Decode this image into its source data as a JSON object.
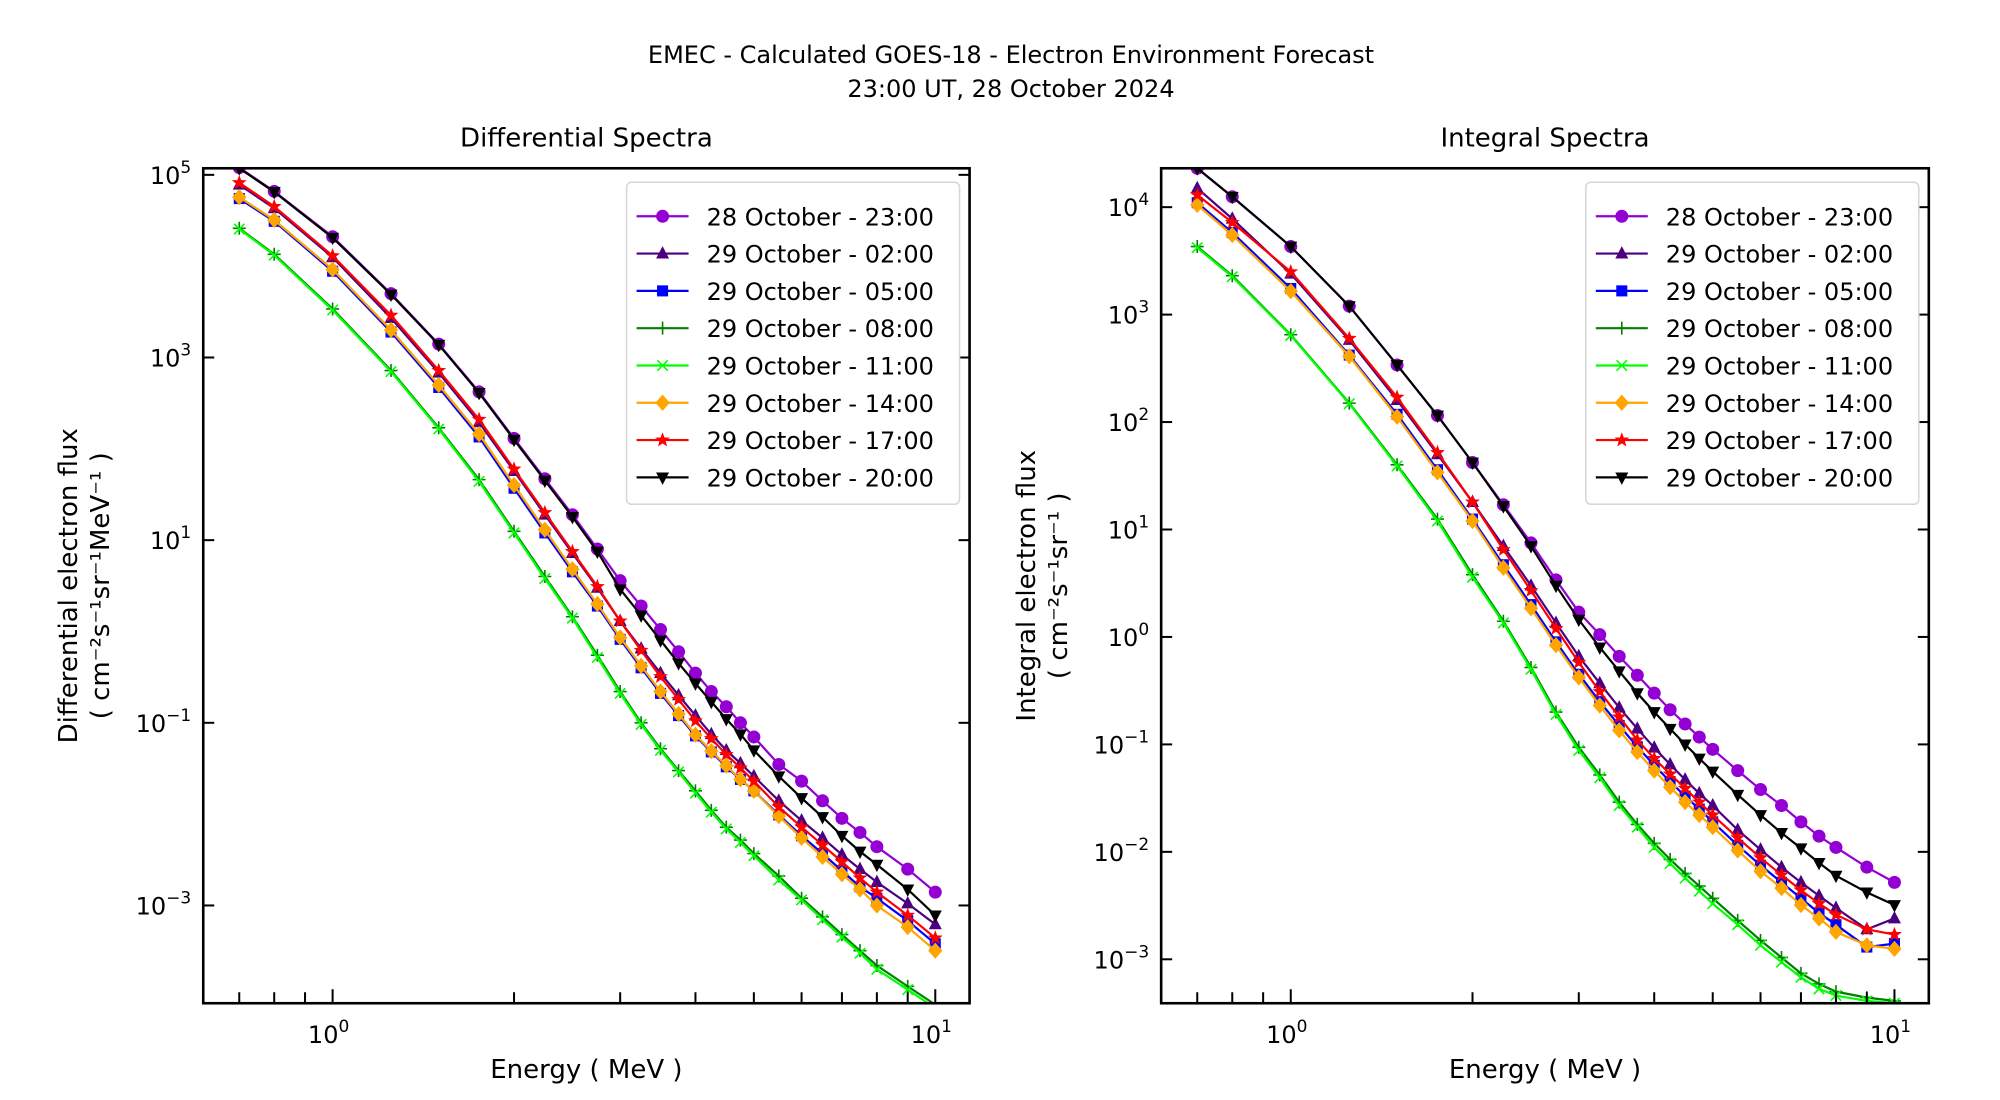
{
  "figure": {
    "suptitle_line1": "EMEC - Calculated GOES-18 - Electron Environment Forecast",
    "suptitle_line2": "23:00 UT, 28 October 2024"
  },
  "legend_entries": [
    {
      "label": "28 October - 23:00",
      "color": "#9400D3",
      "marker": "circle"
    },
    {
      "label": "29 October - 02:00",
      "color": "#4B0082",
      "marker": "triangle-up"
    },
    {
      "label": "29 October - 05:00",
      "color": "#0000FF",
      "marker": "square"
    },
    {
      "label": "29 October - 08:00",
      "color": "#008000",
      "marker": "plus"
    },
    {
      "label": "29 October - 11:00",
      "color": "#00FF00",
      "marker": "x"
    },
    {
      "label": "29 October - 14:00",
      "color": "#FFA500",
      "marker": "diamond"
    },
    {
      "label": "29 October - 17:00",
      "color": "#FF0000",
      "marker": "star"
    },
    {
      "label": "29 October - 20:00",
      "color": "#000000",
      "marker": "triangle-down"
    }
  ],
  "chart_data": [
    {
      "type": "line",
      "title": "Differential Spectra",
      "xlabel": "Energy ( MeV )",
      "ylabel_line1": "Differential electron flux",
      "ylabel_line2": "( cm⁻²s⁻¹sr⁻¹MeV⁻¹ )",
      "xscale": "log",
      "yscale": "log",
      "xlim": [
        0.61,
        11.4
      ],
      "ylim": [
        8.5e-05,
        118000
      ],
      "xticks": [
        {
          "value": 1,
          "label": "10",
          "exp": "0"
        },
        {
          "value": 10,
          "label": "10",
          "exp": "1"
        }
      ],
      "yticks": [
        {
          "value": 100000,
          "label": "10",
          "exp": "5"
        },
        {
          "value": 1000,
          "label": "10",
          "exp": "3"
        },
        {
          "value": 10,
          "label": "10",
          "exp": "1"
        },
        {
          "value": 0.1,
          "label": "10",
          "exp": "−1"
        },
        {
          "value": 0.001,
          "label": "10",
          "exp": "−3"
        }
      ],
      "legend_position": "upper right",
      "x": [
        0.7,
        0.8,
        1.0,
        1.25,
        1.5,
        1.75,
        2.0,
        2.25,
        2.5,
        2.75,
        3.0,
        3.25,
        3.5,
        3.75,
        4.0,
        4.25,
        4.5,
        4.75,
        5.0,
        5.5,
        6.0,
        6.5,
        7.0,
        7.5,
        8.0,
        9.0,
        10.0
      ],
      "series": [
        {
          "name": "28 October - 23:00",
          "values": [
            120000,
            66000,
            21000,
            5000,
            1400,
            420,
            130,
            47,
            19,
            8.0,
            3.6,
            1.9,
            1.05,
            0.6,
            0.35,
            0.22,
            0.15,
            0.1,
            0.07,
            0.035,
            0.023,
            0.014,
            0.009,
            0.0063,
            0.0044,
            0.0025,
            0.0014
          ]
        },
        {
          "name": "29 October - 02:00",
          "values": [
            78000,
            43000,
            12500,
            2700,
            680,
            195,
            57,
            19,
            7.2,
            3.0,
            1.3,
            0.65,
            0.35,
            0.2,
            0.12,
            0.075,
            0.05,
            0.036,
            0.026,
            0.014,
            0.0085,
            0.0055,
            0.0036,
            0.0025,
            0.0018,
            0.00105,
            0.00062
          ]
        },
        {
          "name": "29 October - 05:00",
          "values": [
            55000,
            31000,
            8800,
            1900,
            470,
            135,
            37,
            12,
            4.5,
            1.9,
            0.82,
            0.4,
            0.21,
            0.12,
            0.072,
            0.048,
            0.033,
            0.024,
            0.018,
            0.0098,
            0.0058,
            0.0037,
            0.0024,
            0.0016,
            0.0012,
            0.00068,
            0.00038
          ]
        },
        {
          "name": "29 October - 08:00",
          "values": [
            26000,
            13500,
            3400,
            720,
            170,
            46,
            12.5,
            4.0,
            1.45,
            0.55,
            0.22,
            0.1,
            0.052,
            0.03,
            0.018,
            0.011,
            0.0072,
            0.0052,
            0.0037,
            0.0021,
            0.0012,
            0.00075,
            0.00048,
            0.00032,
            0.00022,
            0.00013,
            8.2e-05
          ]
        },
        {
          "name": "29 October - 11:00",
          "values": [
            25500,
            13200,
            3300,
            700,
            165,
            44,
            12,
            3.8,
            1.4,
            0.52,
            0.21,
            0.096,
            0.05,
            0.029,
            0.017,
            0.0105,
            0.0069,
            0.0049,
            0.0035,
            0.0019,
            0.00115,
            0.0007,
            0.00045,
            0.0003,
            0.0002,
            0.00012,
            7.5e-05
          ]
        },
        {
          "name": "29 October - 14:00",
          "values": [
            57000,
            32000,
            9200,
            2000,
            500,
            145,
            40,
            13,
            4.8,
            2.0,
            0.86,
            0.42,
            0.22,
            0.125,
            0.074,
            0.049,
            0.034,
            0.024,
            0.018,
            0.0095,
            0.0055,
            0.0034,
            0.0022,
            0.0015,
            0.001,
            0.00058,
            0.00032
          ]
        },
        {
          "name": "29 October - 17:00",
          "values": [
            82000,
            45000,
            13000,
            2900,
            720,
            210,
            60,
            20,
            7.5,
            3.1,
            1.3,
            0.62,
            0.32,
            0.18,
            0.105,
            0.067,
            0.045,
            0.032,
            0.023,
            0.012,
            0.0072,
            0.0046,
            0.003,
            0.002,
            0.0014,
            0.00078,
            0.00044
          ]
        },
        {
          "name": "29 October - 20:00",
          "values": [
            118000,
            65000,
            20500,
            4900,
            1380,
            410,
            126,
            45,
            18,
            7.5,
            2.9,
            1.5,
            0.8,
            0.45,
            0.27,
            0.17,
            0.11,
            0.075,
            0.05,
            0.026,
            0.015,
            0.0093,
            0.0058,
            0.0039,
            0.0028,
            0.0015,
            0.00078
          ]
        }
      ]
    },
    {
      "type": "line",
      "title": "Integral Spectra",
      "xlabel": "Energy ( MeV )",
      "ylabel_line1": "Integral electron flux",
      "ylabel_line2": "( cm⁻²s⁻¹sr⁻¹ )",
      "xscale": "log",
      "yscale": "log",
      "xlim": [
        0.61,
        11.4
      ],
      "ylim": [
        0.00039,
        23000
      ],
      "xticks": [
        {
          "value": 1,
          "label": "10",
          "exp": "0"
        },
        {
          "value": 10,
          "label": "10",
          "exp": "1"
        }
      ],
      "yticks": [
        {
          "value": 10000,
          "label": "10",
          "exp": "4"
        },
        {
          "value": 1000,
          "label": "10",
          "exp": "3"
        },
        {
          "value": 100,
          "label": "10",
          "exp": "2"
        },
        {
          "value": 10,
          "label": "10",
          "exp": "1"
        },
        {
          "value": 1,
          "label": "10",
          "exp": "0"
        },
        {
          "value": 0.1,
          "label": "10",
          "exp": "−1"
        },
        {
          "value": 0.01,
          "label": "10",
          "exp": "−2"
        },
        {
          "value": 0.001,
          "label": "10",
          "exp": "−3"
        }
      ],
      "legend_position": "upper right",
      "x": [
        0.7,
        0.8,
        1.0,
        1.25,
        1.5,
        1.75,
        2.0,
        2.25,
        2.5,
        2.75,
        3.0,
        3.25,
        3.5,
        3.75,
        4.0,
        4.25,
        4.5,
        4.75,
        5.0,
        5.5,
        6.0,
        6.5,
        7.0,
        7.5,
        8.0,
        9.0,
        10.0
      ],
      "series": [
        {
          "name": "28 October - 23:00",
          "values": [
            23000,
            12500,
            4300,
            1200,
            340,
            115,
            42,
            17,
            7.5,
            3.4,
            1.7,
            1.05,
            0.66,
            0.44,
            0.3,
            0.21,
            0.155,
            0.117,
            0.09,
            0.057,
            0.038,
            0.027,
            0.019,
            0.014,
            0.011,
            0.0072,
            0.0052
          ]
        },
        {
          "name": "29 October - 02:00",
          "values": [
            15000,
            7800,
            2400,
            580,
            160,
            50,
            18,
            7.0,
            3.0,
            1.35,
            0.66,
            0.37,
            0.22,
            0.14,
            0.093,
            0.065,
            0.047,
            0.035,
            0.027,
            0.016,
            0.0105,
            0.0072,
            0.0052,
            0.0039,
            0.003,
            0.0019,
            0.0024
          ]
        },
        {
          "name": "29 October - 05:00",
          "values": [
            11000,
            5800,
            1750,
            420,
            118,
            36,
            12.5,
            4.7,
            2.0,
            0.9,
            0.45,
            0.25,
            0.15,
            0.095,
            0.064,
            0.045,
            0.033,
            0.025,
            0.019,
            0.0115,
            0.0075,
            0.0052,
            0.0037,
            0.0027,
            0.0021,
            0.0013,
            0.0014
          ]
        },
        {
          "name": "29 October - 08:00",
          "values": [
            4300,
            2300,
            650,
            150,
            40,
            12.5,
            3.8,
            1.4,
            0.52,
            0.2,
            0.094,
            0.052,
            0.029,
            0.018,
            0.012,
            0.0085,
            0.0063,
            0.0048,
            0.0037,
            0.0023,
            0.0015,
            0.00104,
            0.00074,
            0.00059,
            0.0005,
            0.00044,
            0.00041
          ]
        },
        {
          "name": "29 October - 11:00",
          "values": [
            4200,
            2250,
            640,
            148,
            39,
            12,
            3.6,
            1.35,
            0.5,
            0.19,
            0.088,
            0.049,
            0.027,
            0.017,
            0.011,
            0.0078,
            0.0057,
            0.0043,
            0.0033,
            0.0021,
            0.00135,
            0.00094,
            0.00068,
            0.00053,
            0.00046,
            0.00041,
            0.00039
          ]
        },
        {
          "name": "29 October - 14:00",
          "values": [
            10500,
            5500,
            1650,
            410,
            112,
            34,
            12,
            4.4,
            1.85,
            0.84,
            0.42,
            0.23,
            0.135,
            0.085,
            0.057,
            0.04,
            0.029,
            0.022,
            0.017,
            0.0103,
            0.0066,
            0.0046,
            0.0032,
            0.0024,
            0.0018,
            0.00135,
            0.00125
          ]
        },
        {
          "name": "29 October - 17:00",
          "values": [
            13000,
            7200,
            2500,
            600,
            170,
            52,
            18,
            6.5,
            2.7,
            1.2,
            0.58,
            0.31,
            0.18,
            0.11,
            0.074,
            0.053,
            0.039,
            0.029,
            0.022,
            0.0135,
            0.0088,
            0.0061,
            0.0044,
            0.0033,
            0.0026,
            0.0019,
            0.0017
          ]
        },
        {
          "name": "29 October - 20:00",
          "values": [
            23000,
            12500,
            4300,
            1200,
            340,
            115,
            42,
            16.5,
            7.0,
            3.0,
            1.45,
            0.8,
            0.48,
            0.3,
            0.2,
            0.14,
            0.1,
            0.074,
            0.056,
            0.034,
            0.022,
            0.015,
            0.0108,
            0.0079,
            0.006,
            0.0042,
            0.0032
          ]
        }
      ]
    }
  ]
}
